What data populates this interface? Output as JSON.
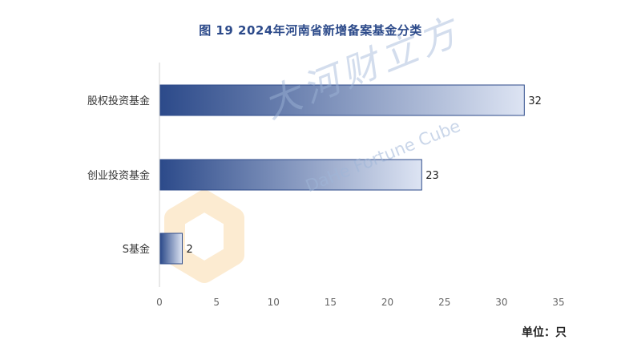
{
  "chart_data": {
    "type": "bar",
    "orientation": "horizontal",
    "title": "图 19  2024年河南省新增备案基金分类",
    "categories": [
      "股权投资基金",
      "创业投资基金",
      "S基金"
    ],
    "values": [
      32,
      23,
      2
    ],
    "data_labels": [
      "32",
      "23",
      "2"
    ],
    "xlim": [
      0,
      35
    ],
    "xticks": [
      0,
      5,
      10,
      15,
      20,
      25,
      30,
      35
    ],
    "grid": false,
    "unit": "单位：只",
    "bar_color_start": "#2c4a8a",
    "bar_color_end": "#dde4f3"
  },
  "watermark": {
    "text": "大河财立方",
    "sub": "DaHe Fortune Cube"
  }
}
